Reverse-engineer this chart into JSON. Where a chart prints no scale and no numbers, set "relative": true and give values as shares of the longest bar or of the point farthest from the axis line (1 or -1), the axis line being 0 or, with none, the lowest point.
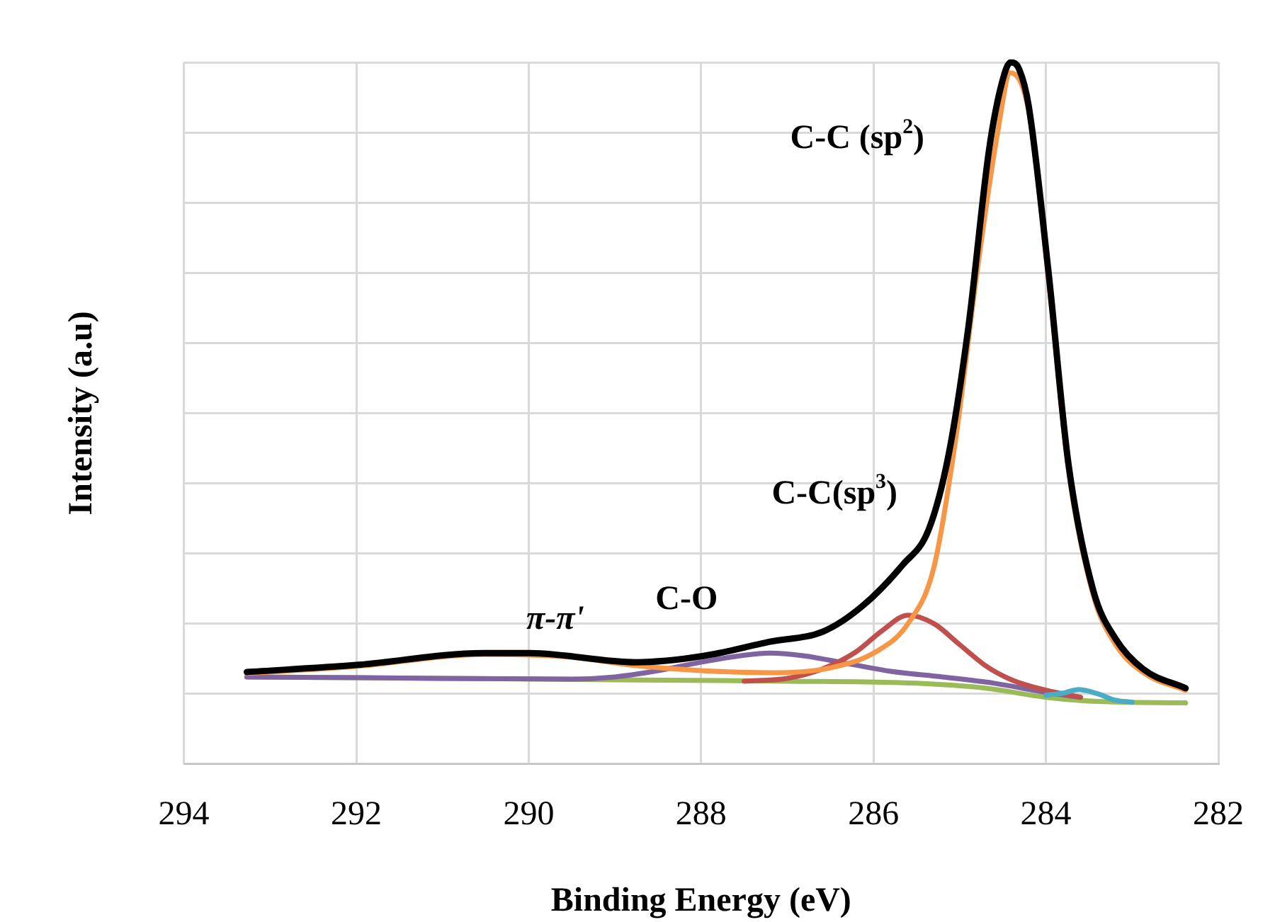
{
  "chart_data": {
    "type": "line",
    "relative": true,
    "xlabel": "Binding Energy (eV)",
    "ylabel": "Intensity (a.u)",
    "xlim": [
      294,
      282
    ],
    "xticks": [
      294,
      292,
      290,
      288,
      286,
      284,
      282
    ],
    "grid": true,
    "legend": false,
    "marker": "none",
    "line_style": "solid",
    "series": [
      {
        "color": "#9bbb59",
        "x": [
          293.27,
          291,
          289,
          287,
          285.5,
          284.7,
          284,
          283.4,
          282.38
        ],
        "values": [
          0.124,
          0.122,
          0.12,
          0.118,
          0.115,
          0.108,
          0.095,
          0.089,
          0.087
        ]
      },
      {
        "color": "#8064a2",
        "x": [
          293.27,
          291,
          289.5,
          289,
          288.5,
          288,
          287.5,
          287.2,
          286.8,
          286.3,
          285.8,
          285.2,
          284.6,
          284,
          283.6
        ],
        "values": [
          0.124,
          0.122,
          0.121,
          0.124,
          0.133,
          0.145,
          0.155,
          0.158,
          0.154,
          0.143,
          0.132,
          0.124,
          0.115,
          0.102,
          0.095
        ]
      },
      {
        "color": "#c0504d",
        "x": [
          287.5,
          287,
          286.6,
          286.2,
          285.9,
          285.6,
          285.3,
          285,
          284.7,
          284.4,
          284,
          283.6
        ],
        "values": [
          0.118,
          0.122,
          0.135,
          0.16,
          0.19,
          0.212,
          0.2,
          0.17,
          0.14,
          0.12,
          0.105,
          0.095
        ]
      },
      {
        "color": "#4bacc6",
        "x": [
          284,
          283.8,
          283.62,
          283.4,
          283.2,
          283
        ],
        "values": [
          0.098,
          0.101,
          0.106,
          0.1,
          0.091,
          0.088
        ]
      },
      {
        "color": "#f79646",
        "x": [
          293.27,
          292,
          290.52,
          289.5,
          288.75,
          288,
          287.2,
          286.5,
          285.97,
          285.6,
          285.3,
          285.05,
          284.8,
          284.56,
          284.41,
          284.2,
          283.97,
          283.74,
          283.45,
          283.19,
          282.87,
          282.38
        ],
        "values": [
          0.129,
          0.139,
          0.156,
          0.152,
          0.14,
          0.133,
          0.13,
          0.137,
          0.16,
          0.2,
          0.28,
          0.46,
          0.7,
          0.9,
          0.985,
          0.93,
          0.69,
          0.42,
          0.24,
          0.17,
          0.13,
          0.105
        ]
      },
      {
        "color": "#000000",
        "x": [
          293.27,
          292,
          290.52,
          289.99,
          288.75,
          287.97,
          287.21,
          286.58,
          286.12,
          285.66,
          285.36,
          285.13,
          284.9,
          284.66,
          284.51,
          284.41,
          284.31,
          284.2,
          283.97,
          283.74,
          283.45,
          283.19,
          282.87,
          282.38
        ],
        "values": [
          0.131,
          0.141,
          0.158,
          0.158,
          0.145,
          0.154,
          0.174,
          0.189,
          0.226,
          0.284,
          0.334,
          0.44,
          0.622,
          0.875,
          0.971,
          1,
          0.99,
          0.938,
          0.701,
          0.429,
          0.247,
          0.178,
          0.135,
          0.108
        ]
      }
    ],
    "annotations": [
      "C-C (sp$^{2}$)",
      "C-C(sp$^{3}$)",
      "C-O",
      "π-π'"
    ]
  }
}
